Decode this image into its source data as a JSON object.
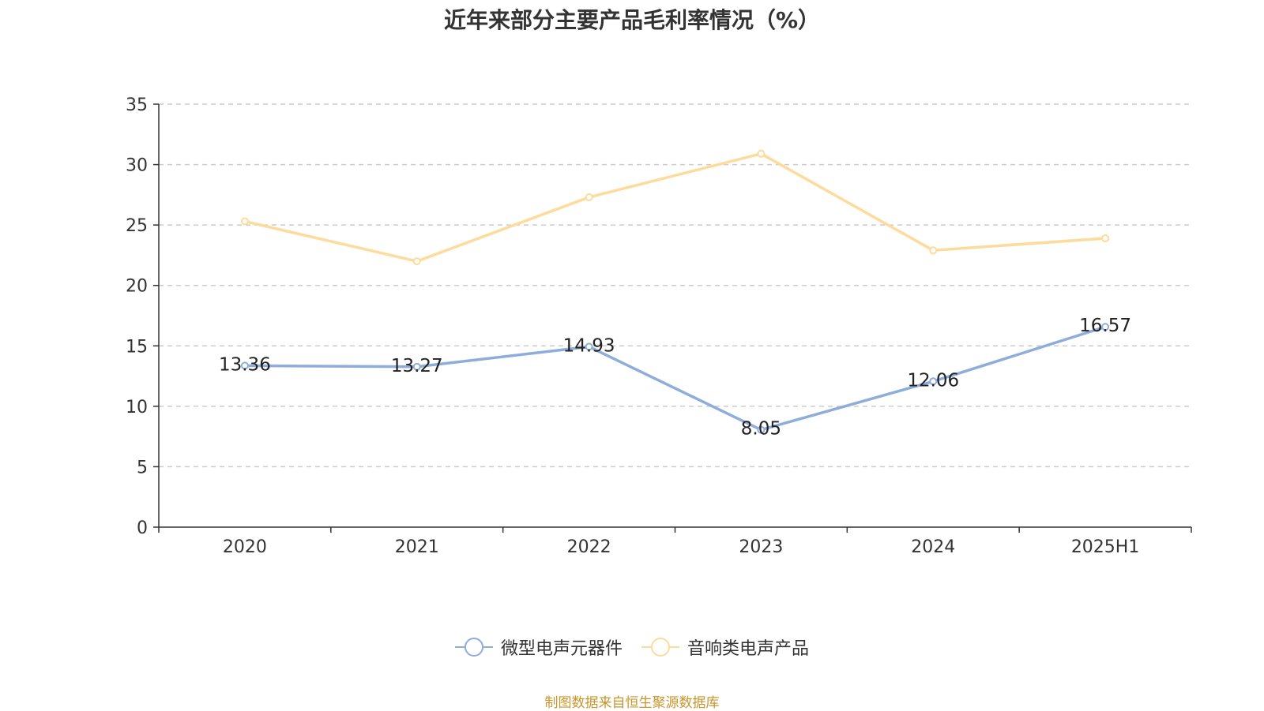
{
  "chart_data": {
    "type": "line",
    "title": "近年来部分主要产品毛利率情况（%）",
    "categories": [
      "2020",
      "2021",
      "2022",
      "2023",
      "2024",
      "2025H1"
    ],
    "ylim": [
      0,
      35
    ],
    "yticks": [
      0,
      5,
      10,
      15,
      20,
      25,
      30,
      35
    ],
    "grid": true,
    "legend_position": "bottom",
    "series": [
      {
        "name": "微型电声元器件",
        "color": "#8eaddb",
        "values": [
          13.36,
          13.27,
          14.93,
          8.05,
          12.06,
          16.57
        ],
        "labels": [
          "13.36",
          "13.27",
          "14.93",
          "8.05",
          "12.06",
          "16.57"
        ]
      },
      {
        "name": "音响类电声产品",
        "color": "#fddb9c",
        "values": [
          25.3,
          22.0,
          27.3,
          30.9,
          22.9,
          23.9
        ]
      }
    ]
  },
  "source_note": "制图数据来自恒生聚源数据库"
}
